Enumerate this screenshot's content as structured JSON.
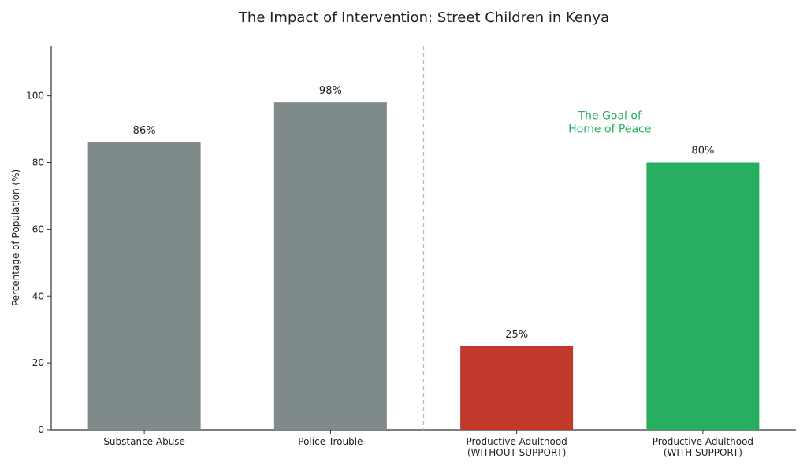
{
  "chart_data": {
    "type": "bar",
    "title": "The Impact of Intervention: Street Children in Kenya",
    "xlabel": "",
    "ylabel": "Percentage of Population (%)",
    "ylim": [
      0,
      115
    ],
    "yticks": [
      0,
      20,
      40,
      60,
      80,
      100
    ],
    "grid": false,
    "categories": [
      [
        "Substance Abuse"
      ],
      [
        "Police Trouble"
      ],
      [
        "Productive Adulthood",
        "(WITHOUT SUPPORT)"
      ],
      [
        "Productive Adulthood",
        "(WITH SUPPORT)"
      ]
    ],
    "values": [
      86,
      98,
      25,
      80
    ],
    "value_labels": [
      "86%",
      "98%",
      "25%",
      "80%"
    ],
    "colors": [
      "#7f8b8a",
      "#7f8b8a",
      "#c0392b",
      "#27ae60"
    ],
    "divider_after_category": 1,
    "annotation": {
      "lines": [
        "The Goal of",
        "Home of Peace"
      ],
      "color": "#27ae60",
      "y": 92
    }
  }
}
